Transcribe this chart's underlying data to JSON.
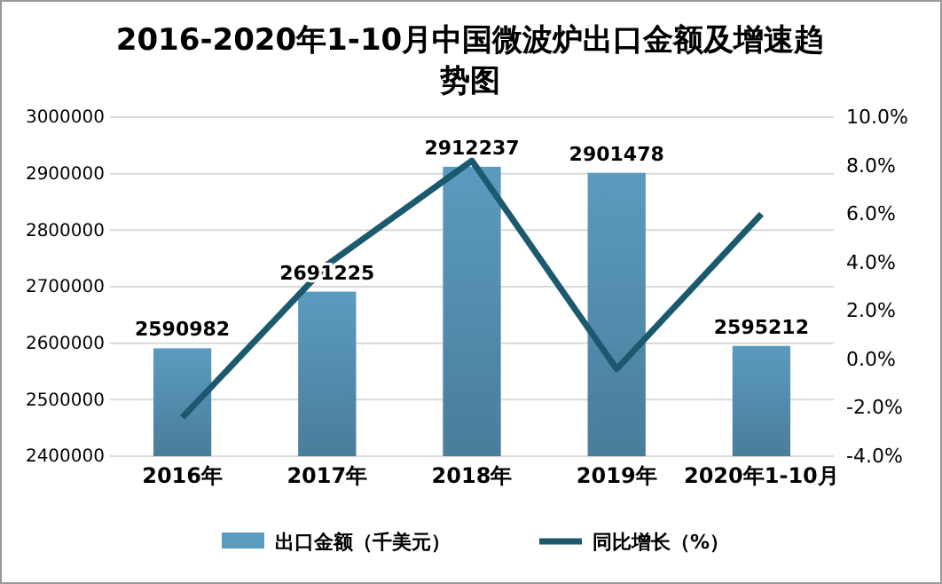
{
  "chart_data": {
    "type": "bar",
    "title": "2016-2020年1-10月中国微波炉出口金额及增速趋势图",
    "categories": [
      "2016年",
      "2017年",
      "2018年",
      "2019年",
      "2020年1-10月"
    ],
    "series": [
      {
        "name": "出口金额（千美元）",
        "color": "#5b9bbf",
        "values": [
          2590982,
          2691225,
          2912237,
          2901478,
          2595212
        ],
        "value_labels": [
          "2590982",
          "2691225",
          "2912237",
          "2901478",
          "2595212"
        ]
      },
      {
        "name": "同比增长（%）",
        "type": "line",
        "axis": "y2",
        "color": "#1b5a6e",
        "values": [
          -2.4,
          3.9,
          8.2,
          -0.4,
          6.0
        ]
      }
    ],
    "ylim": [
      2400000,
      3000000
    ],
    "yticks": [
      2400000,
      2500000,
      2600000,
      2700000,
      2800000,
      2900000,
      3000000
    ],
    "y2lim": [
      -4,
      10
    ],
    "y2ticks": [
      {
        "value": -4,
        "label": "-4.0%"
      },
      {
        "value": -2,
        "label": "-2.0%"
      },
      {
        "value": 0,
        "label": "0.0%"
      },
      {
        "value": 2,
        "label": "2.0%"
      },
      {
        "value": 4,
        "label": "4.0%"
      },
      {
        "value": 6,
        "label": "6.0%"
      },
      {
        "value": 8,
        "label": "8.0%"
      },
      {
        "value": 10,
        "label": "10.0%"
      }
    ],
    "grid": "y",
    "legend": "bottom",
    "marker": "none"
  }
}
